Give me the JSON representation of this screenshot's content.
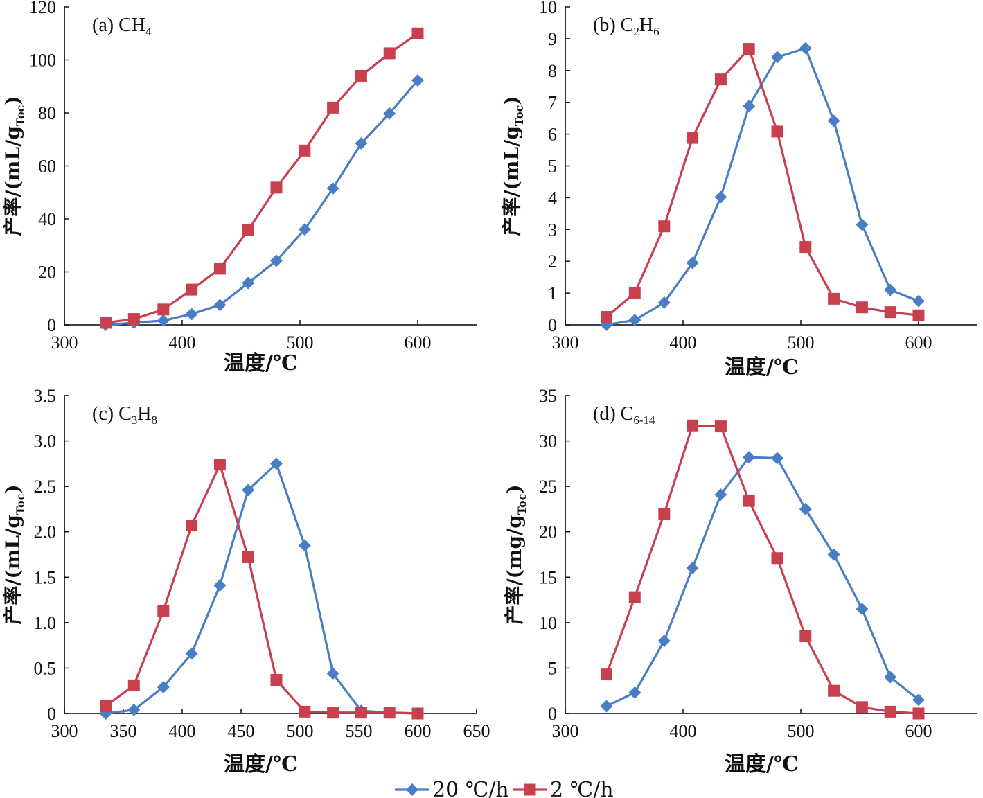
{
  "chart_data": [
    {
      "type": "line",
      "title": "(a) CH4",
      "title_parts": {
        "prefix": "(a) CH",
        "sub": "4",
        "suffix": ""
      },
      "xlabel": "温度/℃",
      "ylabel": "产率/(mL/gToc)",
      "ylabel_parts": {
        "main": "产率/(mL/g",
        "sub": "Toc",
        "end": ")"
      },
      "xlim": [
        300,
        650
      ],
      "ylim": [
        0,
        120
      ],
      "xticks": [
        300,
        400,
        500,
        600
      ],
      "yticks": [
        0,
        20,
        40,
        60,
        80,
        100,
        120
      ],
      "xtick_labels": [
        "300",
        "400",
        "500",
        "600"
      ],
      "ytick_labels": [
        "0",
        "20",
        "40",
        "60",
        "80",
        "100",
        "120"
      ],
      "series": [
        {
          "name": "20 ℃/h",
          "color": "#4a7ec4",
          "marker": "diamond",
          "x": [
            335,
            359,
            384,
            408,
            432,
            456,
            480,
            504,
            528,
            552,
            576,
            600
          ],
          "y": [
            0,
            0.8,
            1.6,
            4.1,
            7.5,
            15.8,
            24.2,
            36,
            51.5,
            68.5,
            79.8,
            92.3
          ]
        },
        {
          "name": "2 ℃/h",
          "color": "#c8404e",
          "marker": "square",
          "x": [
            335,
            359,
            384,
            408,
            432,
            456,
            480,
            504,
            528,
            552,
            576,
            600
          ],
          "y": [
            0.8,
            2.2,
            5.8,
            13.3,
            21.2,
            35.8,
            51.8,
            65.8,
            82,
            94,
            102.5,
            110
          ]
        }
      ]
    },
    {
      "type": "line",
      "title": "(b) C2H6",
      "title_parts": {
        "prefix": "(b) C",
        "sub": "2",
        "suffix": "H",
        "sub2": "6"
      },
      "xlabel": "温度/℃",
      "ylabel": "产率/(mL/gToc)",
      "ylabel_parts": {
        "main": "产率/(mL/g",
        "sub": "Toc",
        "end": ")"
      },
      "xlim": [
        300,
        650
      ],
      "ylim": [
        0,
        10
      ],
      "xticks": [
        300,
        400,
        500,
        600
      ],
      "yticks": [
        0,
        1,
        2,
        3,
        4,
        5,
        6,
        7,
        8,
        9,
        10
      ],
      "xtick_labels": [
        "300",
        "400",
        "500",
        "600"
      ],
      "ytick_labels": [
        "0",
        "1",
        "2",
        "3",
        "4",
        "5",
        "6",
        "7",
        "8",
        "9",
        "10"
      ],
      "series": [
        {
          "name": "20 ℃/h",
          "color": "#4a7ec4",
          "marker": "diamond",
          "x": [
            335,
            359,
            384,
            408,
            432,
            456,
            480,
            504,
            528,
            552,
            576,
            600
          ],
          "y": [
            0,
            0.15,
            0.7,
            1.95,
            4.02,
            6.88,
            8.42,
            8.7,
            6.42,
            3.15,
            1.1,
            0.75
          ]
        },
        {
          "name": "2 ℃/h",
          "color": "#c8404e",
          "marker": "square",
          "x": [
            335,
            359,
            384,
            408,
            432,
            456,
            480,
            504,
            528,
            552,
            576,
            600
          ],
          "y": [
            0.25,
            1.0,
            3.1,
            5.88,
            7.72,
            8.68,
            6.08,
            2.45,
            0.82,
            0.55,
            0.4,
            0.3
          ]
        }
      ]
    },
    {
      "type": "line",
      "title": "(c) C3H8",
      "title_parts": {
        "prefix": "(c) C",
        "sub": "3",
        "suffix": "H",
        "sub2": "8"
      },
      "xlabel": "温度/℃",
      "ylabel": "产率/(mL/gToc)",
      "ylabel_parts": {
        "main": "产率/(mL/g",
        "sub": "Toc",
        "end": ")"
      },
      "xlim": [
        300,
        650
      ],
      "ylim": [
        0,
        3.5
      ],
      "xticks": [
        300,
        350,
        400,
        450,
        500,
        550,
        600,
        650
      ],
      "yticks": [
        0,
        0.5,
        1.0,
        1.5,
        2.0,
        2.5,
        3.0,
        3.5
      ],
      "xtick_labels": [
        "300",
        "350",
        "400",
        "450",
        "500",
        "550",
        "600",
        "650"
      ],
      "ytick_labels": [
        "0",
        "0.5",
        "1.0",
        "1.5",
        "2.0",
        "2.5",
        "3.0",
        "3.5"
      ],
      "series": [
        {
          "name": "20 ℃/h",
          "color": "#4a7ec4",
          "marker": "diamond",
          "x": [
            335,
            359,
            384,
            408,
            432,
            456,
            480,
            504,
            528,
            552,
            576,
            600
          ],
          "y": [
            0,
            0.04,
            0.29,
            0.66,
            1.41,
            2.46,
            2.75,
            1.85,
            0.44,
            0.03,
            0.01,
            0
          ]
        },
        {
          "name": "2 ℃/h",
          "color": "#c8404e",
          "marker": "square",
          "x": [
            335,
            359,
            384,
            408,
            432,
            456,
            480,
            504,
            528,
            552,
            576,
            600
          ],
          "y": [
            0.08,
            0.31,
            1.13,
            2.07,
            2.74,
            1.72,
            0.37,
            0.02,
            0.01,
            0.01,
            0.01,
            0
          ]
        }
      ]
    },
    {
      "type": "line",
      "title": "(d) C6-14",
      "title_parts": {
        "prefix": "(d) C",
        "sub": "6-14",
        "suffix": ""
      },
      "xlabel": "温度/℃",
      "ylabel": "产率/(mg/gToc)",
      "ylabel_parts": {
        "main": "产率/(mg/g",
        "sub": "Toc",
        "end": ")"
      },
      "xlim": [
        300,
        650
      ],
      "ylim": [
        0,
        35
      ],
      "xticks": [
        300,
        400,
        500,
        600
      ],
      "yticks": [
        0,
        5,
        10,
        15,
        20,
        25,
        30,
        35
      ],
      "xtick_labels": [
        "300",
        "400",
        "500",
        "600"
      ],
      "ytick_labels": [
        "0",
        "5",
        "10",
        "15",
        "20",
        "25",
        "30",
        "35"
      ],
      "series": [
        {
          "name": "20 ℃/h",
          "color": "#4a7ec4",
          "marker": "diamond",
          "x": [
            335,
            359,
            384,
            408,
            432,
            456,
            480,
            504,
            528,
            552,
            576,
            600
          ],
          "y": [
            0.8,
            2.3,
            8,
            16,
            24.1,
            28.2,
            28.1,
            22.5,
            17.5,
            11.5,
            4,
            1.5
          ]
        },
        {
          "name": "2 ℃/h",
          "color": "#c8404e",
          "marker": "square",
          "x": [
            335,
            359,
            384,
            408,
            432,
            456,
            480,
            504,
            528,
            552,
            576,
            600
          ],
          "y": [
            4.3,
            12.8,
            22,
            31.7,
            31.6,
            23.4,
            17.1,
            8.5,
            2.5,
            0.7,
            0.2,
            0
          ]
        }
      ]
    }
  ],
  "legend": {
    "position": "bottom-center",
    "items": [
      {
        "label": "20 ℃/h",
        "color": "#4a7ec4",
        "marker": "diamond"
      },
      {
        "label": "2 ℃/h",
        "color": "#c8404e",
        "marker": "square"
      }
    ]
  }
}
